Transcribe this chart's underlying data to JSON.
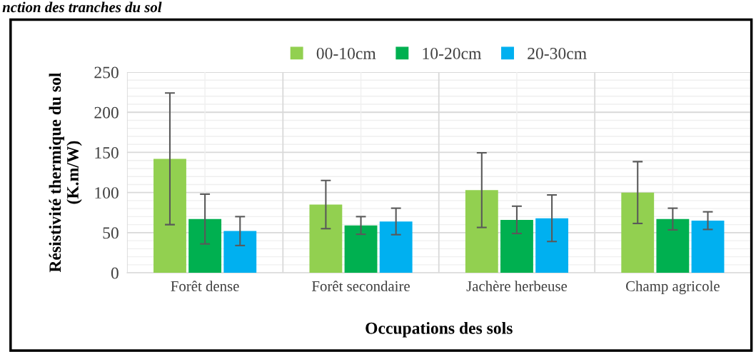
{
  "chart_data": {
    "type": "bar",
    "title": "nction des tranches du sol",
    "categories": [
      "Forêt dense",
      "Forêt secondaire",
      "Jachère herbeuse",
      "Champ agricole"
    ],
    "series": [
      {
        "name": "00-10cm",
        "color": "#92d050",
        "values": [
          142,
          85,
          103,
          100
        ],
        "errors": [
          82,
          30,
          46.5,
          38.5
        ]
      },
      {
        "name": "10-20cm",
        "color": "#00b050",
        "values": [
          67,
          59,
          66,
          67
        ],
        "errors": [
          31,
          11,
          17,
          13.5
        ]
      },
      {
        "name": "20-30cm",
        "color": "#00b0f0",
        "values": [
          52,
          64,
          68,
          65
        ],
        "errors": [
          18,
          16.5,
          29,
          11
        ]
      }
    ],
    "xlabel": "Occupations des sols",
    "ylabel": "Résistivité thermique du sol\n(K.m/W)",
    "ylim": [
      0,
      250
    ],
    "yticks": [
      0,
      {
        "value": 10,
        "label": null
      },
      {
        "value": 20,
        "label": null
      },
      {
        "value": 30,
        "label": null
      },
      {
        "value": 40,
        "label": null
      },
      50,
      {
        "value": 60,
        "label": null
      },
      {
        "value": 70,
        "label": null
      },
      {
        "value": 80,
        "label": null
      },
      {
        "value": 90,
        "label": null
      },
      100,
      {
        "value": 110,
        "label": null
      },
      {
        "value": 120,
        "label": null
      },
      {
        "value": 130,
        "label": null
      },
      {
        "value": 140,
        "label": null
      },
      150,
      {
        "value": 160,
        "label": null
      },
      {
        "value": 170,
        "label": null
      },
      {
        "value": 180,
        "label": null
      },
      {
        "value": 190,
        "label": null
      },
      200,
      {
        "value": 210,
        "label": null
      },
      {
        "value": 220,
        "label": null
      },
      {
        "value": 230,
        "label": null
      },
      {
        "value": 240,
        "label": null
      },
      250
    ],
    "grid": true,
    "legend": "top"
  }
}
